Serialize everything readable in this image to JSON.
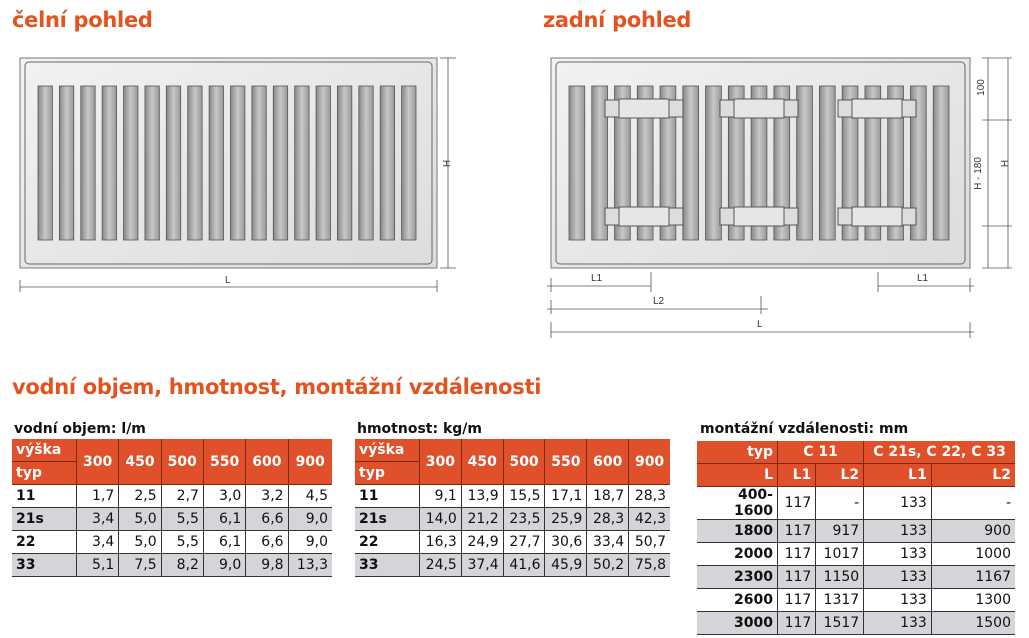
{
  "front": {
    "title": "čelní pohled",
    "dim_h": "H",
    "dim_l": "L"
  },
  "rear": {
    "title": "zadní pohled",
    "dim_100": "100",
    "dim_h180": "H - 180",
    "dim_h": "H",
    "dim_l1": "L1",
    "dim_l1_right": "L1",
    "dim_l2": "L2",
    "dim_l": "L"
  },
  "section_title": "vodní objem, hmotnost, montážní vzdálenosti",
  "water": {
    "caption": "vodní objem: l/m",
    "corner_top": "výška",
    "corner_bottom": "typ",
    "columns": [
      "300",
      "450",
      "500",
      "550",
      "600",
      "900"
    ],
    "rows": [
      {
        "type": "11",
        "values": [
          "1,7",
          "2,5",
          "2,7",
          "3,0",
          "3,2",
          "4,5"
        ]
      },
      {
        "type": "21s",
        "values": [
          "3,4",
          "5,0",
          "5,5",
          "6,1",
          "6,6",
          "9,0"
        ]
      },
      {
        "type": "22",
        "values": [
          "3,4",
          "5,0",
          "5,5",
          "6,1",
          "6,6",
          "9,0"
        ]
      },
      {
        "type": "33",
        "values": [
          "5,1",
          "7,5",
          "8,2",
          "9,0",
          "9,8",
          "13,3"
        ]
      }
    ]
  },
  "weight": {
    "caption": "hmotnost: kg/m",
    "corner_top": "výška",
    "corner_bottom": "typ",
    "columns": [
      "300",
      "450",
      "500",
      "550",
      "600",
      "900"
    ],
    "rows": [
      {
        "type": "11",
        "values": [
          "9,1",
          "13,9",
          "15,5",
          "17,1",
          "18,7",
          "28,3"
        ]
      },
      {
        "type": "21s",
        "values": [
          "14,0",
          "21,2",
          "23,5",
          "25,9",
          "28,3",
          "42,3"
        ]
      },
      {
        "type": "22",
        "values": [
          "16,3",
          "24,9",
          "27,7",
          "30,6",
          "33,4",
          "50,7"
        ]
      },
      {
        "type": "33",
        "values": [
          "24,5",
          "37,4",
          "41,6",
          "45,9",
          "50,2",
          "75,8"
        ]
      }
    ]
  },
  "mounting": {
    "caption": "montážní vzdálenosti: mm",
    "header_type": "typ",
    "group1": "C 11",
    "group2": "C 21s, C 22, C 33",
    "header_l": "L",
    "sub_columns": [
      "L1",
      "L2",
      "L1",
      "L2"
    ],
    "rows": [
      {
        "L": "400-1600",
        "values": [
          "117",
          "-",
          "133",
          "-"
        ]
      },
      {
        "L": "1800",
        "values": [
          "117",
          "917",
          "133",
          "900"
        ]
      },
      {
        "L": "2000",
        "values": [
          "117",
          "1017",
          "133",
          "1000"
        ]
      },
      {
        "L": "2300",
        "values": [
          "117",
          "1150",
          "133",
          "1167"
        ]
      },
      {
        "L": "2600",
        "values": [
          "117",
          "1317",
          "133",
          "1300"
        ]
      },
      {
        "L": "3000",
        "values": [
          "117",
          "1517",
          "133",
          "1500"
        ]
      }
    ]
  },
  "colors": {
    "accent": "#e2531f",
    "header_bg": "#e0502a",
    "row_alt": "#d3d5d9"
  }
}
